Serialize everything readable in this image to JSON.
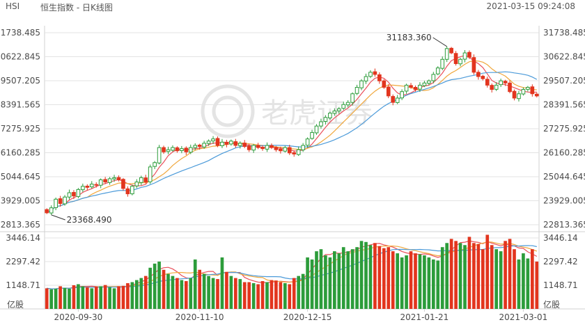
{
  "header": {
    "symbol": "HSI",
    "name": "恒生指数 - 日K线图",
    "timestamp": "2021-03-15 09:24:08"
  },
  "watermark": "老虎证券",
  "colors": {
    "up": "#2c9c3a",
    "down": "#e2351e",
    "ma5": "#e94f5a",
    "ma10": "#f0a73c",
    "ma20": "#4b9ad9",
    "grid": "#e3e3e3",
    "border": "#d0d0d0"
  },
  "chart_data": [
    {
      "type": "candlestick",
      "y_ticks": [
        "31738.485",
        "30622.845",
        "29507.205",
        "28391.565",
        "27275.925",
        "26160.285",
        "25044.645",
        "23929.005",
        "22813.365"
      ],
      "ylim": [
        22813.365,
        31738.485
      ],
      "x_ticks": [
        "2020-09-30",
        "2020-11-10",
        "2020-12-15",
        "2021-01-21",
        "2021-03-01"
      ],
      "annotations": {
        "high_label": "31183.360",
        "low_label": "23368.490"
      },
      "close": [
        23368,
        23600,
        24000,
        23800,
        24100,
        24300,
        24150,
        24450,
        24600,
        24550,
        24700,
        24650,
        24900,
        24800,
        24950,
        25000,
        24900,
        24500,
        24250,
        24600,
        24800,
        25000,
        24800,
        25500,
        25700,
        26400,
        26200,
        26300,
        26400,
        26250,
        26350,
        26200,
        26400,
        26500,
        26450,
        26600,
        26700,
        26800,
        26500,
        26650,
        26550,
        26700,
        26500,
        26600,
        26450,
        26300,
        26500,
        26400,
        26350,
        26500,
        26400,
        26300,
        26250,
        26400,
        26150,
        26100,
        26300,
        26500,
        26800,
        27100,
        27400,
        27600,
        27800,
        28000,
        28100,
        28200,
        28400,
        28500,
        28900,
        29200,
        29500,
        29700,
        29900,
        29800,
        29500,
        29200,
        28800,
        28500,
        28700,
        29000,
        29300,
        29200,
        29100,
        29300,
        29400,
        29500,
        29800,
        30100,
        30500,
        31000,
        30800,
        30300,
        30500,
        30800,
        30600,
        29900,
        29700,
        29600,
        29300,
        29100,
        29300,
        29500,
        29400,
        29000,
        28700,
        28900,
        29100,
        29200,
        28900,
        28800
      ],
      "volume": [
        1000,
        950,
        980,
        1100,
        1020,
        980,
        1150,
        1200,
        1100,
        1050,
        1000,
        1080,
        1100,
        1160,
        1050,
        1000,
        1100,
        1120,
        1250,
        1300,
        1400,
        1500,
        1600,
        2000,
        2200,
        2300,
        1900,
        1700,
        1600,
        1500,
        1400,
        1350,
        1500,
        2400,
        1900,
        1700,
        1600,
        1500,
        1450,
        2500,
        1800,
        1600,
        1500,
        1450,
        1300,
        1300,
        1250,
        1200,
        1350,
        1300,
        1400,
        1380,
        1300,
        1250,
        1200,
        1500,
        1600,
        1700,
        2500,
        2400,
        2800,
        2900,
        2600,
        2500,
        2800,
        2700,
        3000,
        2800,
        2900,
        3000,
        3300,
        3250,
        3100,
        3200,
        3050,
        2950,
        3000,
        2800,
        2700,
        2500,
        2600,
        2800,
        2700,
        2650,
        2600,
        2500,
        2400,
        2350,
        3000,
        3200,
        3400,
        3300,
        3200,
        3100,
        3500,
        3200,
        3150,
        2900,
        3600,
        3100,
        2900,
        2800,
        3300,
        3400,
        2900,
        2400,
        2700,
        2450,
        2900,
        2300
      ]
    },
    {
      "type": "bar",
      "y_ticks": [
        "3446.14",
        "2297.42",
        "1148.71"
      ],
      "ylim": [
        0,
        3446.14
      ],
      "unit_label": "亿股"
    }
  ]
}
